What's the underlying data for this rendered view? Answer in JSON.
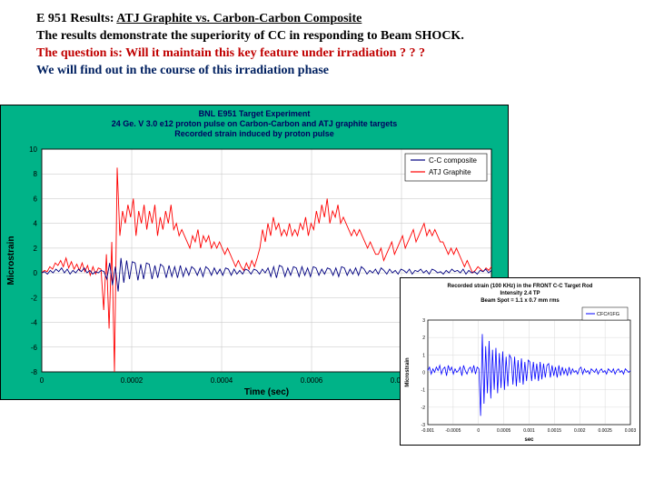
{
  "header": {
    "line1_prefix": "E 951 Results: ",
    "line1_underline": "ATJ Graphite vs. Carbon-Carbon Composite",
    "line2": "The results demonstrate the superiority of CC in responding to Beam SHOCK.",
    "line3": "The question is: Will it maintain this key feature under irradiation ? ? ?",
    "line4": "We will find out in the course of this irradiation phase"
  },
  "main_chart": {
    "type": "line",
    "background_color": "#00b388",
    "plot_bg": "#ffffff",
    "grid_color": "#c0c0c0",
    "axis_color": "#000000",
    "title_lines": [
      "BNL E951 Target Experiment",
      "24 Ge. V 3.0 e12 proton pulse on Carbon-Carbon and ATJ graphite targets",
      "Recorded strain induced by proton pulse"
    ],
    "title_fontsize": 9,
    "xlabel": "Time (sec)",
    "ylabel": "Microstrain",
    "label_fontsize": 10,
    "tick_fontsize": 8,
    "xlim": [
      0,
      0.001
    ],
    "xticks": [
      0,
      0.0002,
      0.0004,
      0.0006,
      0.0008
    ],
    "xtick_labels": [
      "0",
      "0.0002",
      "0.0004",
      "0.0006",
      "0.0008"
    ],
    "ylim": [
      -8,
      10
    ],
    "yticks": [
      -8,
      -6,
      -4,
      -2,
      0,
      2,
      4,
      6,
      8,
      10
    ],
    "legend": {
      "items": [
        "C-C composite",
        "ATJ Graphite"
      ],
      "colors": [
        "#000080",
        "#ff0000"
      ]
    },
    "series": [
      {
        "name": "ATJ Graphite",
        "color": "#ff0000",
        "line_width": 0.9,
        "y": [
          0,
          0.2,
          0.1,
          0.5,
          0.3,
          0.8,
          0.6,
          1,
          0.5,
          1.2,
          0.4,
          0.9,
          0.3,
          0.7,
          0.2,
          0.8,
          0.1,
          0.6,
          -0.2,
          0.5,
          -0.1,
          0.4,
          0.3,
          -3,
          1.5,
          -4.5,
          2.5,
          -8,
          8.5,
          3,
          5,
          4,
          5.5,
          4.5,
          6,
          3,
          5,
          4,
          5.5,
          3.5,
          5,
          4,
          5.5,
          3,
          4.5,
          3.5,
          5,
          4,
          5.5,
          3.5,
          4,
          3,
          3.5,
          3,
          2.5,
          2,
          3,
          2.5,
          3.5,
          2,
          3,
          2.5,
          3,
          2,
          2.5,
          2,
          2.5,
          2,
          1.5,
          2,
          1.5,
          1,
          0.5,
          1,
          0.5,
          0.2,
          0.8,
          0.3,
          1,
          0.5,
          1.2,
          2,
          3.5,
          2.5,
          4,
          3,
          4.5,
          3.5,
          4,
          3,
          3.5,
          3,
          4,
          3,
          3.5,
          3,
          4,
          3.5,
          4.5,
          3,
          4,
          3.5,
          5,
          4,
          5.5,
          4.5,
          6,
          4,
          5,
          4.5,
          5.5,
          4,
          4.5,
          4,
          3.5,
          3,
          3.5,
          3,
          3.5,
          3,
          2.5,
          2,
          2.5,
          2,
          1.5,
          1.5,
          2,
          1,
          1.5,
          2,
          2.5,
          1.5,
          2,
          2.5,
          3,
          2,
          2.5,
          3,
          3.5,
          2.5,
          3,
          3.5,
          4,
          3,
          3.5,
          3,
          3.5,
          3,
          2.5,
          2.5,
          2,
          1.5,
          2,
          1.5,
          2,
          1.5,
          1,
          0.5,
          1,
          0.5,
          0,
          0.2,
          0.5,
          0.3,
          0.1,
          0.4,
          0.2,
          0.5
        ]
      },
      {
        "name": "C-C composite",
        "color": "#000080",
        "line_width": 0.9,
        "y": [
          0,
          0.1,
          -0.1,
          0.2,
          0,
          0.3,
          0.1,
          0.4,
          0,
          0.3,
          -0.1,
          0.2,
          0,
          0.3,
          0.1,
          0.4,
          0,
          0.2,
          -0.1,
          0.1,
          0,
          0.2,
          0.1,
          -0.5,
          0.8,
          -1,
          0.5,
          -1.5,
          1.2,
          -0.8,
          1,
          -0.5,
          0.9,
          0.8,
          -0.6,
          0.7,
          -0.5,
          0.8,
          0.7,
          -0.5,
          0.6,
          -0.4,
          0.7,
          0.5,
          -0.4,
          0.6,
          -0.3,
          0.5,
          -0.4,
          0.6,
          -0.3,
          0.4,
          -0.2,
          0.5,
          0.3,
          -0.2,
          0.4,
          -0.3,
          0.5,
          0.3,
          -0.2,
          0.4,
          -0.1,
          0.3,
          -0.2,
          0.4,
          0.3,
          -0.2,
          0.3,
          -0.1,
          0.2,
          -0.1,
          0.3,
          0.2,
          -0.1,
          0.3,
          0.2,
          -0.1,
          0.3,
          0,
          0.4,
          -0.3,
          0.5,
          -0.4,
          0.6,
          0.5,
          -0.3,
          0.4,
          -0.2,
          0.5,
          0.4,
          -0.3,
          0.5,
          -0.2,
          0.4,
          -0.3,
          0.5,
          0.4,
          -0.2,
          0.3,
          -0.1,
          0.4,
          0.3,
          -0.2,
          0.4,
          -0.3,
          0.5,
          0.4,
          -0.2,
          0.3,
          -0.1,
          0.4,
          -0.2,
          0.5,
          0.3,
          -0.1,
          0.2,
          0,
          0.3,
          -0.1,
          0.4,
          0.2,
          -0.1,
          0.3,
          0,
          0.2,
          -0.1,
          0.3,
          0.2,
          0,
          0.3,
          -0.1,
          0.2,
          0.1,
          0.3,
          0,
          0.2,
          -0.1,
          0.3,
          0.2,
          0,
          0.1,
          -0.1,
          0.2,
          0,
          0.3,
          0.1,
          0.2,
          0,
          0.3,
          -0.1,
          0.2,
          0,
          0.1,
          -0.1,
          0.2,
          0.1,
          0.3,
          0,
          0.2
        ]
      }
    ]
  },
  "inset_chart": {
    "type": "line",
    "plot_bg": "#ffffff",
    "grid_color": "#d0d0d0",
    "axis_color": "#000000",
    "title_lines": [
      "Recorded strain (100 KHz) in the FRONT C-C Target Rod",
      "Intensity 2.4 TP",
      "Beam Spot = 1.1 x 0.7 mm rms"
    ],
    "title_fontsize": 6,
    "xlabel": "sec",
    "ylabel": "Microstrain",
    "label_fontsize": 6,
    "tick_fontsize": 5,
    "xlim": [
      -0.001,
      0.003
    ],
    "xticks": [
      -0.001,
      -0.0005,
      0,
      0.0005,
      0.001,
      0.0015,
      0.002,
      0.0025,
      0.003
    ],
    "xtick_labels": [
      "-0.001",
      "-0.0005",
      "0",
      "0.0005",
      "0.001",
      "0.0015",
      "0.002",
      "0.0025",
      "0.003"
    ],
    "ylim": [
      -3,
      3
    ],
    "yticks": [
      -3,
      -2,
      -1,
      0,
      1,
      2,
      3
    ],
    "legend": {
      "items": [
        "CFC#1FG"
      ],
      "colors": [
        "#0000ff"
      ]
    },
    "series": [
      {
        "name": "CFC#1FG",
        "color": "#0000ff",
        "line_width": 0.8,
        "y": [
          0.1,
          0.3,
          -0.1,
          0.2,
          0,
          0.3,
          0.1,
          0.4,
          -0.1,
          0.2,
          0.3,
          -0.2,
          0.4,
          0.1,
          0.3,
          -0.1,
          0.2,
          0,
          0.1,
          0.3,
          -0.2,
          0.4,
          0.1,
          -0.1,
          0.2,
          0.3,
          0,
          0.4,
          -0.1,
          0.3,
          0.2,
          -2.5,
          2.2,
          -1.8,
          1.5,
          -1.2,
          1.8,
          -1.5,
          1.3,
          -1,
          1.4,
          -1.2,
          1.1,
          -0.9,
          1.2,
          -1,
          0.9,
          -0.8,
          1,
          0.8,
          -0.7,
          0.9,
          -0.8,
          0.7,
          -0.6,
          0.8,
          -0.7,
          0.6,
          -0.5,
          0.7,
          0.6,
          -0.5,
          0.6,
          -0.4,
          0.5,
          -0.5,
          0.6,
          -0.4,
          0.5,
          -0.3,
          0.4,
          0.5,
          -0.3,
          0.4,
          -0.2,
          0.3,
          -0.3,
          0.4,
          -0.2,
          0.3,
          -0.1,
          0.2,
          -0.2,
          0.3,
          -0.1,
          0.2,
          0,
          0.1,
          -0.1,
          0.2,
          0.3,
          -0.1,
          0.2,
          0,
          0.1,
          -0.1,
          0.2,
          0.1,
          0,
          0.2,
          -0.1,
          0.1,
          0.2,
          0,
          0.1,
          -0.1,
          0.2,
          0.1,
          0,
          0.2,
          -0.1,
          0.1,
          0.2,
          0,
          0.1,
          -0.1,
          0.2,
          0.1,
          0,
          0.1
        ]
      }
    ]
  }
}
